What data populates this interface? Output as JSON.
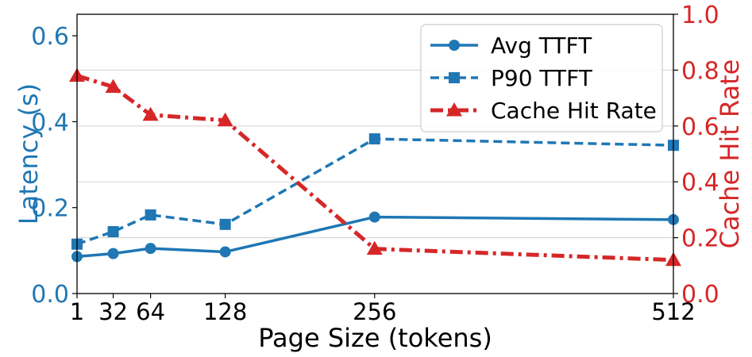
{
  "chart_data": {
    "type": "line",
    "xlabel": "Page Size (tokens)",
    "ylabel_left": "Latency (s)",
    "ylabel_right": "Cache Hit Rate",
    "x": [
      1,
      32,
      64,
      128,
      256,
      512
    ],
    "x_tick_labels": [
      "1",
      "32",
      "64",
      "128",
      "256",
      "512"
    ],
    "xlim": [
      1,
      512
    ],
    "ylim_left": [
      0,
      0.65
    ],
    "ylim_right": [
      0,
      1.0
    ],
    "yticks_left": [
      "0.0",
      "0.2",
      "0.4",
      "0.6"
    ],
    "yticks_right": [
      "0.0",
      "0.2",
      "0.4",
      "0.6",
      "0.8",
      "1.0"
    ],
    "grid": "horizontal (right axis)",
    "legend_position": "top-right",
    "colors": {
      "latency_axis": "#1f77b4",
      "cache_axis": "#d62728"
    },
    "series": [
      {
        "name": "Avg TTFT",
        "axis": "left",
        "style": "solid",
        "marker": "circle",
        "color": "#1f77b4",
        "values": [
          0.086,
          0.093,
          0.105,
          0.097,
          0.178,
          0.172
        ]
      },
      {
        "name": "P90 TTFT",
        "axis": "left",
        "style": "dashed",
        "marker": "square",
        "color": "#1f77b4",
        "values": [
          0.115,
          0.144,
          0.183,
          0.161,
          0.36,
          0.345
        ]
      },
      {
        "name": "Cache Hit Rate",
        "axis": "right",
        "style": "dashdot",
        "marker": "triangle",
        "color": "#d62728",
        "values": [
          0.78,
          0.74,
          0.64,
          0.62,
          0.16,
          0.12
        ]
      }
    ]
  }
}
